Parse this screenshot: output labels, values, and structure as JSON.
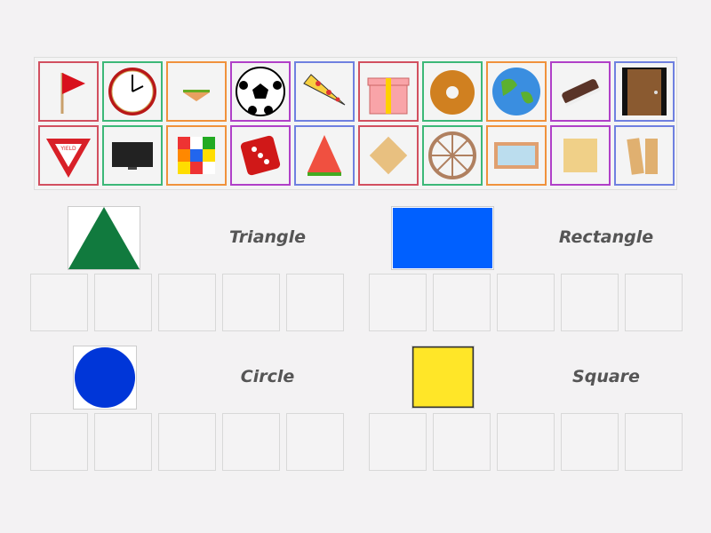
{
  "items": [
    {
      "icon": "flag-icon",
      "color": "#d25060"
    },
    {
      "icon": "clock-icon",
      "color": "#3cb878"
    },
    {
      "icon": "sandwich-icon",
      "color": "#f0923c"
    },
    {
      "icon": "soccer-ball-icon",
      "color": "#b040c8"
    },
    {
      "icon": "pizza-slice-icon",
      "color": "#6f80e0"
    },
    {
      "icon": "gift-box-icon",
      "color": "#d25060"
    },
    {
      "icon": "bagel-icon",
      "color": "#3cb878"
    },
    {
      "icon": "globe-icon",
      "color": "#f0923c"
    },
    {
      "icon": "ice-cream-sandwich-icon",
      "color": "#b040c8"
    },
    {
      "icon": "door-icon",
      "color": "#6f80e0"
    },
    {
      "icon": "yield-sign-icon",
      "color": "#d25060"
    },
    {
      "icon": "tv-icon",
      "color": "#3cb878"
    },
    {
      "icon": "rubiks-cube-icon",
      "color": "#f0923c"
    },
    {
      "icon": "die-icon",
      "color": "#b040c8"
    },
    {
      "icon": "watermelon-slice-icon",
      "color": "#6f80e0"
    },
    {
      "icon": "cracker-diamond-icon",
      "color": "#d25060"
    },
    {
      "icon": "wagon-wheel-icon",
      "color": "#3cb878"
    },
    {
      "icon": "picture-frame-icon",
      "color": "#f0923c"
    },
    {
      "icon": "square-cracker-icon",
      "color": "#b040c8"
    },
    {
      "icon": "graham-crackers-icon",
      "color": "#6f80e0"
    }
  ],
  "groups": [
    {
      "label": "Triangle",
      "shape": "triangle",
      "color": "#117a3e"
    },
    {
      "label": "Rectangle",
      "shape": "rectangle",
      "color": "#0060ff"
    },
    {
      "label": "Circle",
      "shape": "circle",
      "color": "#0036d8"
    },
    {
      "label": "Square",
      "shape": "square",
      "color": "#ffe628"
    }
  ]
}
